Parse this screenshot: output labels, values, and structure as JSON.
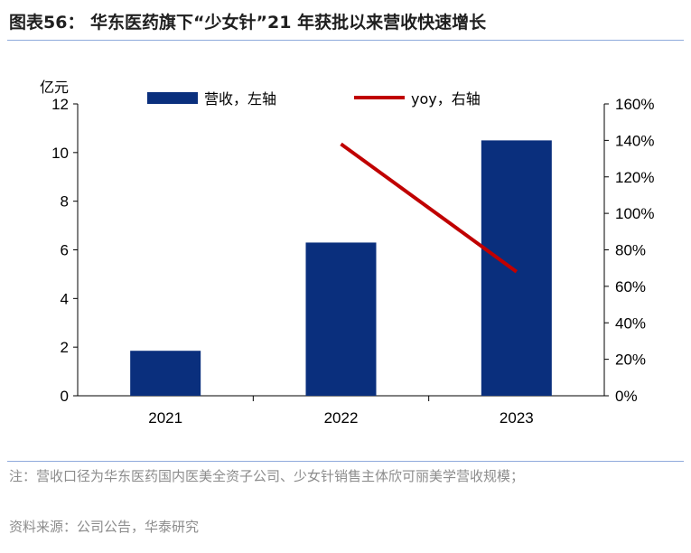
{
  "figure": {
    "title": "图表56： 华东医药旗下“少女针”21 年获批以来营收快速增长",
    "note": "注：营收口径为华东医药国内医美全资子公司、少女针销售主体欣可丽美学营收规模；",
    "source": "资料来源：公司公告，华泰研究"
  },
  "chart_data": {
    "type": "bar",
    "categories": [
      "2021",
      "2022",
      "2023"
    ],
    "series": [
      {
        "name": "营收，左轴",
        "type": "bar",
        "axis": "left",
        "color": "#0a2f7d",
        "values": [
          1.85,
          6.3,
          10.5
        ]
      },
      {
        "name": "yoy，右轴",
        "type": "line",
        "axis": "right",
        "color": "#c00000",
        "values": [
          null,
          1.38,
          0.68
        ]
      }
    ],
    "y_left": {
      "unit": "亿元",
      "ylim": [
        0,
        12
      ],
      "ticks": [
        "0",
        "2",
        "4",
        "6",
        "8",
        "10",
        "12"
      ]
    },
    "y_right": {
      "ylim": [
        0,
        1.6
      ],
      "ticks": [
        "0%",
        "20%",
        "40%",
        "60%",
        "80%",
        "100%",
        "120%",
        "140%",
        "160%"
      ]
    },
    "legend": "top",
    "grid": false
  }
}
